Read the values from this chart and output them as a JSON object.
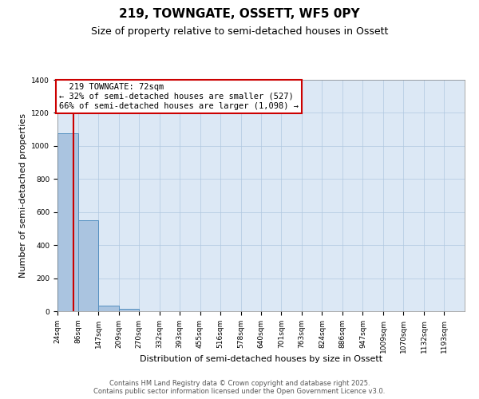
{
  "title_line1": "219, TOWNGATE, OSSETT, WF5 0PY",
  "title_line2": "Size of property relative to semi-detached houses in Ossett",
  "xlabel": "Distribution of semi-detached houses by size in Ossett",
  "ylabel": "Number of semi-detached properties",
  "bar_edges": [
    24,
    86,
    147,
    209,
    270,
    332,
    393,
    455,
    516,
    578,
    640,
    701,
    763,
    824,
    886,
    947,
    1009,
    1070,
    1132,
    1193,
    1255
  ],
  "bar_heights": [
    1075,
    550,
    35,
    15,
    0,
    0,
    0,
    0,
    0,
    0,
    0,
    0,
    0,
    0,
    0,
    0,
    0,
    0,
    0,
    0
  ],
  "bar_color": "#aac4e0",
  "bar_edge_color": "#5590c0",
  "property_size": 72,
  "property_label": "219 TOWNGATE: 72sqm",
  "pct_smaller": 32,
  "n_smaller": 527,
  "pct_larger": 66,
  "n_larger": 1098,
  "vline_color": "#cc0000",
  "annotation_box_color": "#cc0000",
  "ylim": [
    0,
    1400
  ],
  "background_color": "#dce8f5",
  "grid_color": "#b0c8e0",
  "footer_line1": "Contains HM Land Registry data © Crown copyright and database right 2025.",
  "footer_line2": "Contains public sector information licensed under the Open Government Licence v3.0.",
  "title_fontsize": 11,
  "subtitle_fontsize": 9,
  "axis_label_fontsize": 8,
  "tick_fontsize": 6.5,
  "annotation_fontsize": 7.5,
  "footer_fontsize": 6
}
